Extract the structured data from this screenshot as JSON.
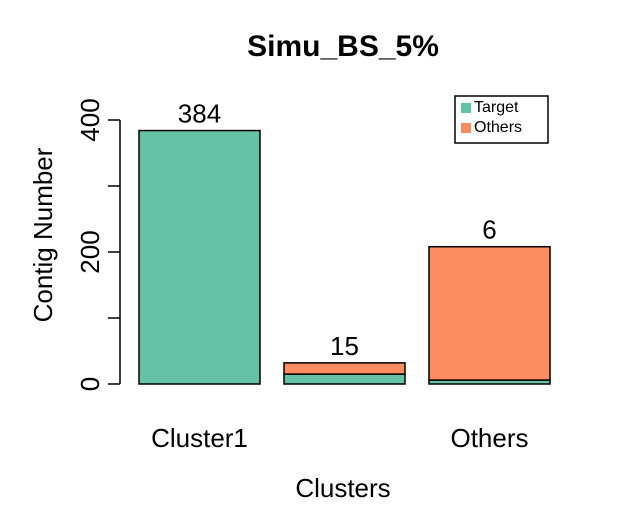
{
  "chart_data": {
    "type": "stacked_bar",
    "title": "Simu_BS_5%",
    "x_label": "Clusters",
    "y_label": "Contig Number",
    "categories": [
      "Cluster1",
      null,
      "Others"
    ],
    "series": [
      {
        "name": "Target",
        "color": "#66c2a5",
        "values": [
          384,
          15,
          6
        ]
      },
      {
        "name": "Others",
        "color": "#fc8d62",
        "values": [
          0,
          17,
          202
        ]
      }
    ],
    "ylim": [
      0,
      400
    ],
    "yticks": [
      0,
      200,
      400
    ],
    "yticks_minor": [
      100,
      300
    ],
    "legend": "top-right"
  }
}
